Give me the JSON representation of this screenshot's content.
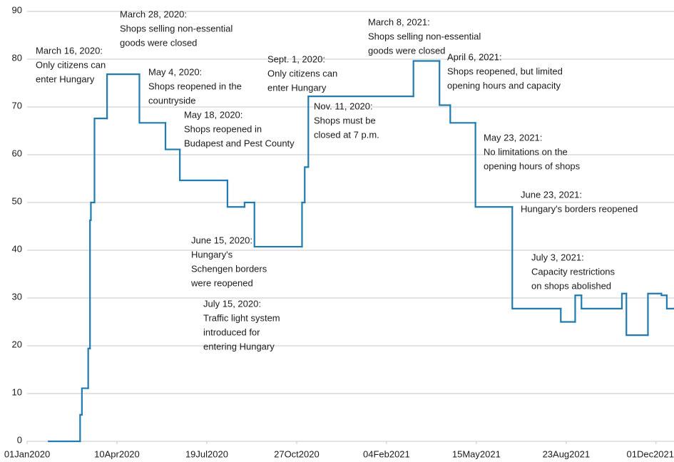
{
  "chart_data": {
    "type": "line",
    "step": true,
    "color": "#1f7bb0",
    "grid": true,
    "xlim": [
      "2020-01-01",
      "2021-12-21"
    ],
    "xticks": [
      {
        "value": "2020-01-01",
        "label": "01Jan2020"
      },
      {
        "value": "2020-04-10",
        "label": "10Apr2020"
      },
      {
        "value": "2020-07-19",
        "label": "19Jul2020"
      },
      {
        "value": "2020-10-27",
        "label": "27Oct2020"
      },
      {
        "value": "2021-02-04",
        "label": "04Feb2021"
      },
      {
        "value": "2021-05-15",
        "label": "15May2021"
      },
      {
        "value": "2021-08-23",
        "label": "23Aug2021"
      },
      {
        "value": "2021-12-01",
        "label": "01Dec2021"
      }
    ],
    "ylim": [
      0,
      90
    ],
    "yticks": [
      0,
      10,
      20,
      30,
      40,
      50,
      60,
      70,
      80,
      90
    ],
    "x": [
      "2020-01-25",
      "2020-02-29",
      "2020-03-02",
      "2020-03-09",
      "2020-03-11",
      "2020-03-12",
      "2020-03-16",
      "2020-03-30",
      "2020-05-05",
      "2020-06-03",
      "2020-06-19",
      "2020-08-11",
      "2020-08-30",
      "2020-09-10",
      "2020-11-02",
      "2020-11-05",
      "2020-11-09",
      "2021-03-06",
      "2021-04-04",
      "2021-04-16",
      "2021-05-14",
      "2021-06-24",
      "2021-08-17",
      "2021-09-02",
      "2021-09-09",
      "2021-10-24",
      "2021-10-29",
      "2021-11-22",
      "2021-12-07",
      "2021-12-13",
      "2021-12-21"
    ],
    "values": [
      0,
      5.56,
      11.11,
      19.44,
      46.3,
      50,
      67.59,
      76.85,
      66.67,
      61.11,
      54.63,
      49.07,
      50,
      40.74,
      50,
      57.41,
      72.22,
      79.63,
      70.37,
      66.67,
      49.07,
      27.78,
      25,
      30.56,
      27.78,
      30.93,
      22.22,
      30.93,
      30.56,
      27.78,
      27.78
    ],
    "annotations": [
      {
        "lines": [
          "March 16, 2020:",
          "Only citizens can",
          "enter Hungary"
        ]
      },
      {
        "lines": [
          "March 28, 2020:",
          "Shops selling non-essential",
          "goods were closed"
        ]
      },
      {
        "lines": [
          "May 4, 2020:",
          "Shops reopened in the",
          "countryside"
        ]
      },
      {
        "lines": [
          "May 18, 2020:",
          "Shops reopened in",
          "Budapest and Pest County"
        ]
      },
      {
        "lines": [
          "June 15, 2020:",
          "Hungary's",
          "Schengen borders",
          "were reopened"
        ]
      },
      {
        "lines": [
          "July 15, 2020:",
          "Traffic light system",
          "introduced for",
          "entering Hungary"
        ]
      },
      {
        "lines": [
          "Sept. 1, 2020:",
          "Only citizens can",
          "enter Hungary"
        ]
      },
      {
        "lines": [
          "Nov. 11, 2020:",
          "Shops must be",
          "closed at 7 p.m."
        ]
      },
      {
        "lines": [
          "March 8, 2021:",
          "Shops selling non-essential",
          "goods were closed"
        ]
      },
      {
        "lines": [
          "April 6, 2021:",
          "Shops reopened, but limited",
          "opening hours and capacity"
        ]
      },
      {
        "lines": [
          "May 23, 2021:",
          "No limitations on the",
          "opening hours of shops"
        ]
      },
      {
        "lines": [
          "June 23, 2021:",
          "Hungary's borders reopened"
        ]
      },
      {
        "lines": [
          "July 3, 2021:",
          "Capacity restrictions",
          "on shops abolished"
        ]
      }
    ]
  }
}
